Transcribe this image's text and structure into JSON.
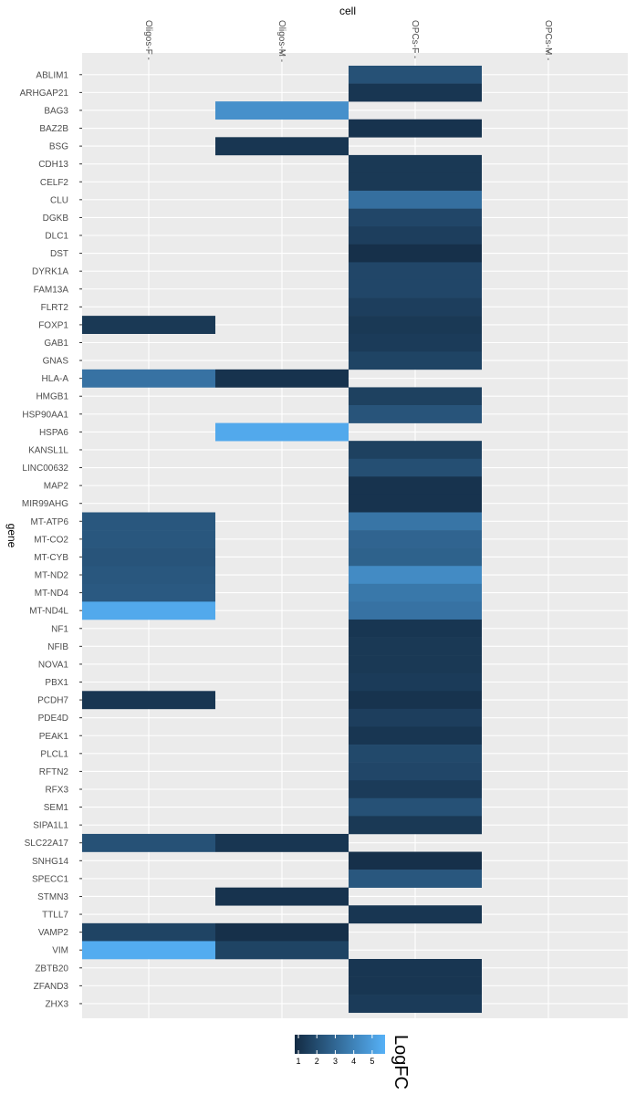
{
  "chart_data": {
    "type": "heatmap",
    "xlabel": "cell",
    "ylabel": "gene",
    "x_categories": [
      "Oligos-F",
      "Oligos-M",
      "OPCs-F",
      "OPCs-M"
    ],
    "y_categories": [
      "ABLIM1",
      "ARHGAP21",
      "BAG3",
      "BAZ2B",
      "BSG",
      "CDH13",
      "CELF2",
      "CLU",
      "DGKB",
      "DLC1",
      "DST",
      "DYRK1A",
      "FAM13A",
      "FLRT2",
      "FOXP1",
      "GAB1",
      "GNAS",
      "HLA-A",
      "HMGB1",
      "HSP90AA1",
      "HSPA6",
      "KANSL1L",
      "LINC00632",
      "MAP2",
      "MIR99AHG",
      "MT-ATP6",
      "MT-CO2",
      "MT-CYB",
      "MT-ND2",
      "MT-ND4",
      "MT-ND4L",
      "NF1",
      "NFIB",
      "NOVA1",
      "PBX1",
      "PCDH7",
      "PDE4D",
      "PEAK1",
      "PLCL1",
      "RFTN2",
      "RFX3",
      "SEM1",
      "SIPA1L1",
      "SLC22A17",
      "SNHG14",
      "SPECC1",
      "STMN3",
      "TTLL7",
      "VAMP2",
      "VIM",
      "ZBTB20",
      "ZFAND3",
      "ZHX3"
    ],
    "cells": [
      {
        "gene": "ABLIM1",
        "cell": "OPCs-F",
        "value": 2.2
      },
      {
        "gene": "ARHGAP21",
        "cell": "OPCs-F",
        "value": 1.2
      },
      {
        "gene": "BAG3",
        "cell": "Oligos-M",
        "value": 4.5
      },
      {
        "gene": "BAZ2B",
        "cell": "OPCs-F",
        "value": 1.1
      },
      {
        "gene": "BSG",
        "cell": "Oligos-M",
        "value": 1.2
      },
      {
        "gene": "CDH13",
        "cell": "OPCs-F",
        "value": 1.3
      },
      {
        "gene": "CELF2",
        "cell": "OPCs-F",
        "value": 1.3
      },
      {
        "gene": "CLU",
        "cell": "OPCs-F",
        "value": 3.3
      },
      {
        "gene": "DGKB",
        "cell": "OPCs-F",
        "value": 1.8
      },
      {
        "gene": "DLC1",
        "cell": "OPCs-F",
        "value": 1.5
      },
      {
        "gene": "DST",
        "cell": "OPCs-F",
        "value": 1.0
      },
      {
        "gene": "DYRK1A",
        "cell": "OPCs-F",
        "value": 1.8
      },
      {
        "gene": "FAM13A",
        "cell": "OPCs-F",
        "value": 1.8
      },
      {
        "gene": "FLRT2",
        "cell": "OPCs-F",
        "value": 1.5
      },
      {
        "gene": "FOXP1",
        "cell": "Oligos-F",
        "value": 1.3
      },
      {
        "gene": "FOXP1",
        "cell": "OPCs-F",
        "value": 1.3
      },
      {
        "gene": "GAB1",
        "cell": "OPCs-F",
        "value": 1.4
      },
      {
        "gene": "GNAS",
        "cell": "OPCs-F",
        "value": 1.7
      },
      {
        "gene": "HLA-A",
        "cell": "Oligos-F",
        "value": 3.4
      },
      {
        "gene": "HLA-A",
        "cell": "Oligos-M",
        "value": 1.1
      },
      {
        "gene": "HMGB1",
        "cell": "OPCs-F",
        "value": 1.6
      },
      {
        "gene": "HSP90AA1",
        "cell": "OPCs-F",
        "value": 2.3
      },
      {
        "gene": "HSPA6",
        "cell": "Oligos-M",
        "value": 5.4
      },
      {
        "gene": "KANSL1L",
        "cell": "OPCs-F",
        "value": 1.6
      },
      {
        "gene": "LINC00632",
        "cell": "OPCs-F",
        "value": 2.1
      },
      {
        "gene": "MAP2",
        "cell": "OPCs-F",
        "value": 1.1
      },
      {
        "gene": "MIR99AHG",
        "cell": "OPCs-F",
        "value": 1.1
      },
      {
        "gene": "MT-ATP6",
        "cell": "Oligos-F",
        "value": 2.4
      },
      {
        "gene": "MT-ATP6",
        "cell": "OPCs-F",
        "value": 3.5
      },
      {
        "gene": "MT-CO2",
        "cell": "Oligos-F",
        "value": 2.4
      },
      {
        "gene": "MT-CO2",
        "cell": "OPCs-F",
        "value": 2.9
      },
      {
        "gene": "MT-CYB",
        "cell": "Oligos-F",
        "value": 2.3
      },
      {
        "gene": "MT-CYB",
        "cell": "OPCs-F",
        "value": 2.8
      },
      {
        "gene": "MT-ND2",
        "cell": "Oligos-F",
        "value": 2.4
      },
      {
        "gene": "MT-ND2",
        "cell": "OPCs-F",
        "value": 4.3
      },
      {
        "gene": "MT-ND4",
        "cell": "Oligos-F",
        "value": 2.5
      },
      {
        "gene": "MT-ND4",
        "cell": "OPCs-F",
        "value": 3.6
      },
      {
        "gene": "MT-ND4L",
        "cell": "Oligos-F",
        "value": 5.4
      },
      {
        "gene": "MT-ND4L",
        "cell": "OPCs-F",
        "value": 3.4
      },
      {
        "gene": "NF1",
        "cell": "OPCs-F",
        "value": 1.2
      },
      {
        "gene": "NFIB",
        "cell": "OPCs-F",
        "value": 1.3
      },
      {
        "gene": "NOVA1",
        "cell": "OPCs-F",
        "value": 1.3
      },
      {
        "gene": "PBX1",
        "cell": "OPCs-F",
        "value": 1.4
      },
      {
        "gene": "PCDH7",
        "cell": "Oligos-F",
        "value": 1.2
      },
      {
        "gene": "PCDH7",
        "cell": "OPCs-F",
        "value": 1.1
      },
      {
        "gene": "PDE4D",
        "cell": "OPCs-F",
        "value": 1.5
      },
      {
        "gene": "PEAK1",
        "cell": "OPCs-F",
        "value": 1.2
      },
      {
        "gene": "PLCL1",
        "cell": "OPCs-F",
        "value": 1.9
      },
      {
        "gene": "RFTN2",
        "cell": "OPCs-F",
        "value": 1.8
      },
      {
        "gene": "RFX3",
        "cell": "OPCs-F",
        "value": 1.4
      },
      {
        "gene": "SEM1",
        "cell": "OPCs-F",
        "value": 2.2
      },
      {
        "gene": "SIPA1L1",
        "cell": "OPCs-F",
        "value": 1.3
      },
      {
        "gene": "SLC22A17",
        "cell": "Oligos-F",
        "value": 2.2
      },
      {
        "gene": "SLC22A17",
        "cell": "Oligos-M",
        "value": 1.2
      },
      {
        "gene": "SNHG14",
        "cell": "OPCs-F",
        "value": 1.0
      },
      {
        "gene": "SPECC1",
        "cell": "OPCs-F",
        "value": 2.4
      },
      {
        "gene": "STMN3",
        "cell": "Oligos-M",
        "value": 1.1
      },
      {
        "gene": "TTLL7",
        "cell": "OPCs-F",
        "value": 1.2
      },
      {
        "gene": "VAMP2",
        "cell": "Oligos-F",
        "value": 1.7
      },
      {
        "gene": "VAMP2",
        "cell": "Oligos-M",
        "value": 1.0
      },
      {
        "gene": "VIM",
        "cell": "Oligos-F",
        "value": 5.5
      },
      {
        "gene": "VIM",
        "cell": "Oligos-M",
        "value": 1.7
      },
      {
        "gene": "ZBTB20",
        "cell": "OPCs-F",
        "value": 1.2
      },
      {
        "gene": "ZFAND3",
        "cell": "OPCs-F",
        "value": 1.2
      },
      {
        "gene": "ZHX3",
        "cell": "OPCs-F",
        "value": 1.4
      }
    ],
    "legend": {
      "title": "LogFC",
      "ticks": [
        "1",
        "2",
        "3",
        "4",
        "5"
      ],
      "range": [
        0.8,
        5.7
      ],
      "low_color": "#132B43",
      "high_color": "#56B1F7",
      "placement": "bottom"
    },
    "grid": true,
    "panel_background": "#EBEBEB",
    "gridline_color": "#FFFFFF"
  }
}
